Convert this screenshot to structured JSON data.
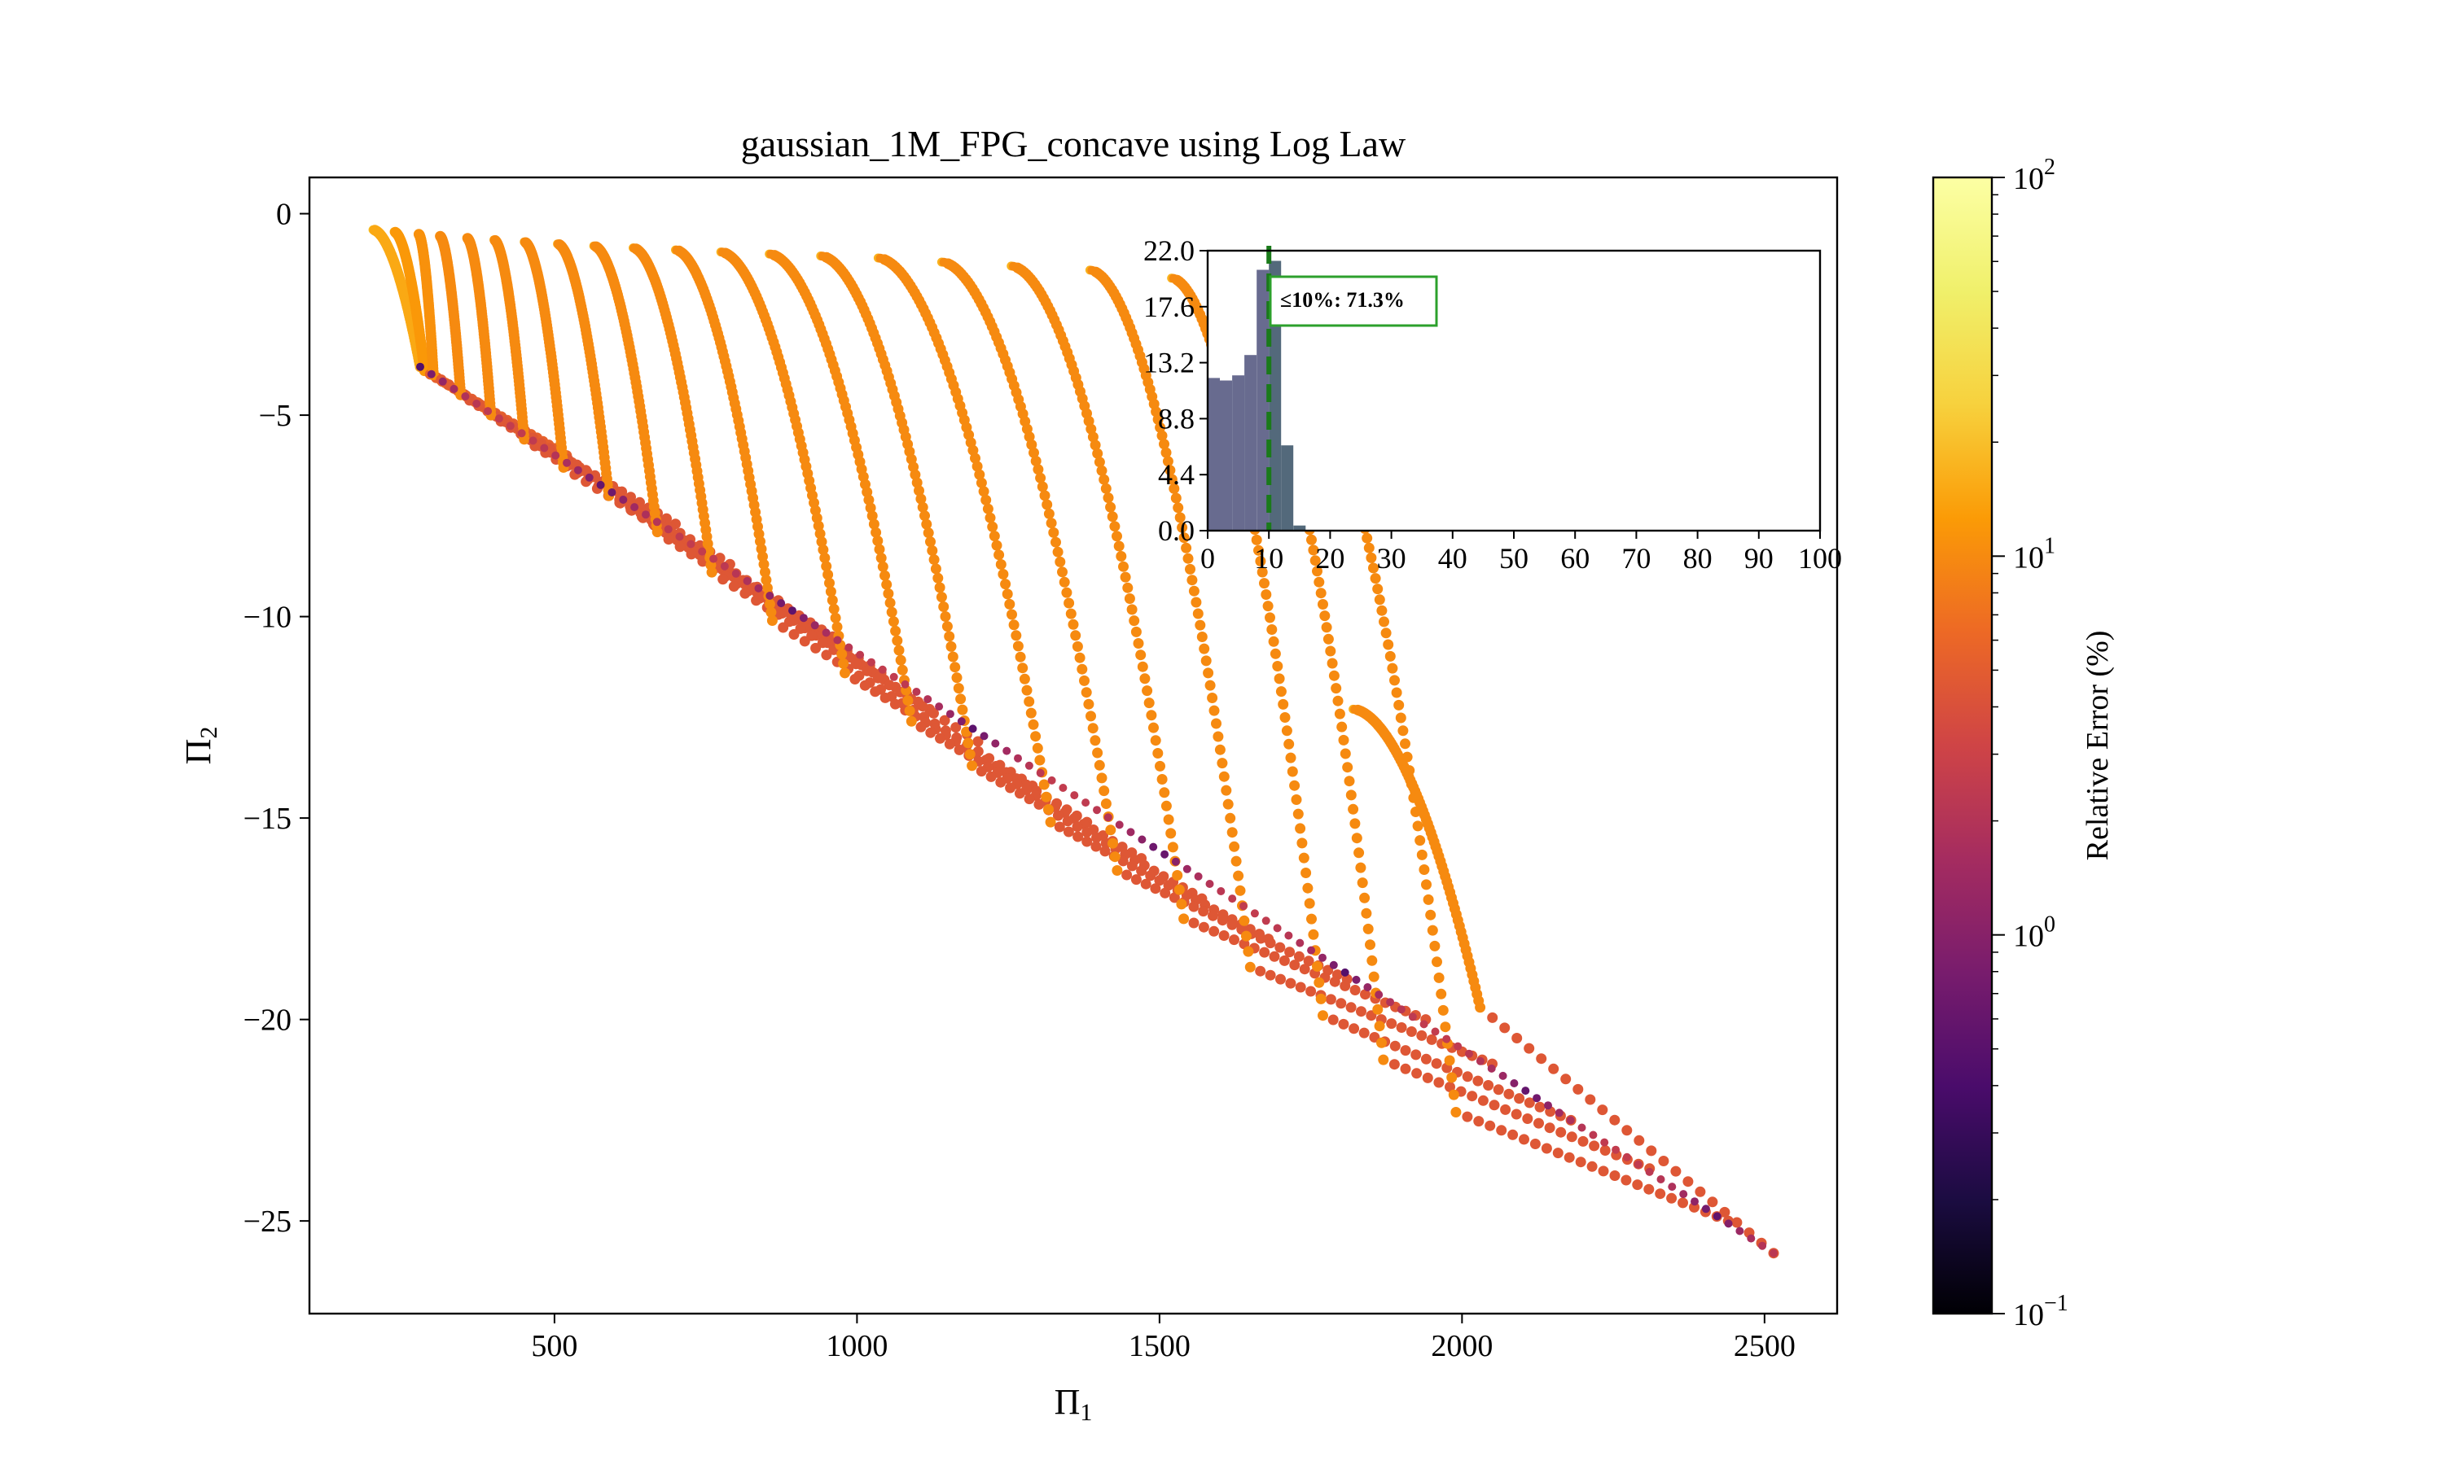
{
  "chart_data": {
    "type": "scatter",
    "title": "gaussian_1M_FPG_concave using Log Law",
    "xlabel": "Π",
    "xlabel_sub": "1",
    "ylabel": "Π",
    "ylabel_sub": "2",
    "xlim": [
      95,
      2620
    ],
    "ylim": [
      -27.3,
      0.9
    ],
    "xticks": [
      500,
      1000,
      1500,
      2000,
      2500
    ],
    "yticks": [
      0,
      -5,
      -10,
      -15,
      -20,
      -25
    ],
    "xtick_labels": [
      "500",
      "1000",
      "1500",
      "2000",
      "2500"
    ],
    "ytick_labels": [
      "0",
      "−5",
      "−10",
      "−15",
      "−20",
      "−25"
    ],
    "grid": false,
    "colormap": "inferno",
    "colorbar": {
      "label": "Relative Error (%)",
      "scale": "log",
      "range": [
        0.1,
        100
      ],
      "tick_base": "10",
      "tick_exponents": [
        "−1",
        "0",
        "1",
        "2"
      ]
    },
    "curves": [
      {
        "start": [
          200,
          -0.4
        ],
        "end": [
          278,
          -3.8
        ],
        "tail": [
          445,
          -5.4
        ],
        "error_pct": 15
      },
      {
        "start": [
          235,
          -0.45
        ],
        "end": [
          285,
          -3.9
        ],
        "tail": [
          520,
          -6.0
        ],
        "error_pct": 12
      },
      {
        "start": [
          275,
          -0.5
        ],
        "end": [
          300,
          -4.0
        ],
        "tail": [
          605,
          -6.9
        ],
        "error_pct": 11
      },
      {
        "start": [
          310,
          -0.55
        ],
        "end": [
          345,
          -4.5
        ],
        "tail": [
          700,
          -7.7
        ],
        "error_pct": 10
      },
      {
        "start": [
          355,
          -0.6
        ],
        "end": [
          395,
          -5.0
        ],
        "tail": [
          790,
          -8.7
        ],
        "error_pct": 10
      },
      {
        "start": [
          400,
          -0.65
        ],
        "end": [
          450,
          -5.6
        ],
        "tail": [
          870,
          -9.6
        ],
        "error_pct": 10
      },
      {
        "start": [
          450,
          -0.7
        ],
        "end": [
          515,
          -6.3
        ],
        "tail": [
          960,
          -10.5
        ],
        "error_pct": 10
      },
      {
        "start": [
          505,
          -0.75
        ],
        "end": [
          590,
          -7.0
        ],
        "tail": [
          1040,
          -11.4
        ],
        "error_pct": 10
      },
      {
        "start": [
          565,
          -0.8
        ],
        "end": [
          670,
          -7.9
        ],
        "tail": [
          1120,
          -12.3
        ],
        "error_pct": 10
      },
      {
        "start": [
          630,
          -0.85
        ],
        "end": [
          760,
          -8.9
        ],
        "tail": [
          1200,
          -13.1
        ],
        "error_pct": 10
      },
      {
        "start": [
          700,
          -0.9
        ],
        "end": [
          860,
          -10.1
        ],
        "tail": [
          1290,
          -14.2
        ],
        "error_pct": 10
      },
      {
        "start": [
          775,
          -0.95
        ],
        "end": [
          980,
          -11.4
        ],
        "tail": [
          1380,
          -15.1
        ],
        "error_pct": 10
      },
      {
        "start": [
          855,
          -1.0
        ],
        "end": [
          1090,
          -12.6
        ],
        "tail": [
          1470,
          -16.0
        ],
        "error_pct": 10
      },
      {
        "start": [
          940,
          -1.05
        ],
        "end": [
          1190,
          -13.7
        ],
        "tail": [
          1570,
          -17.0
        ],
        "error_pct": 10
      },
      {
        "start": [
          1035,
          -1.1
        ],
        "end": [
          1320,
          -15.1
        ],
        "tail": [
          1680,
          -18.0
        ],
        "error_pct": 10
      },
      {
        "start": [
          1140,
          -1.2
        ],
        "end": [
          1430,
          -16.3
        ],
        "tail": [
          1810,
          -19.0
        ],
        "error_pct": 10
      },
      {
        "start": [
          1255,
          -1.3
        ],
        "end": [
          1540,
          -17.5
        ],
        "tail": [
          1940,
          -20.0
        ],
        "error_pct": 10
      },
      {
        "start": [
          1385,
          -1.4
        ],
        "end": [
          1650,
          -18.7
        ],
        "tail": [
          2050,
          -21.1
        ],
        "error_pct": 10
      },
      {
        "start": [
          1520,
          -1.6
        ],
        "end": [
          1770,
          -19.9
        ],
        "tail": [
          2180,
          -22.5
        ],
        "error_pct": 10
      },
      {
        "start": [
          1620,
          -2.2
        ],
        "end": [
          1870,
          -21.0
        ],
        "tail": [
          2310,
          -23.7
        ],
        "error_pct": 10
      },
      {
        "start": [
          1710,
          -3.0
        ],
        "end": [
          1990,
          -22.3
        ],
        "tail": [
          2440,
          -25.0
        ],
        "error_pct": 10
      },
      {
        "start": [
          1820,
          -12.3
        ],
        "end": [
          2030,
          -19.7
        ],
        "tail": [
          2515,
          -25.8
        ],
        "error_pct": 10
      }
    ],
    "diagonal": [
      {
        "from": [
          278,
          -3.8
        ],
        "to": [
          2515,
          -25.8
        ],
        "error_pct": 1.5
      }
    ],
    "inset": {
      "type": "bar",
      "xlim": [
        0,
        100
      ],
      "ylim": [
        0,
        22
      ],
      "xticks": [
        "0",
        "10",
        "20",
        "30",
        "40",
        "50",
        "60",
        "70",
        "80",
        "90",
        "100"
      ],
      "yticks": [
        "0.0",
        "4.4",
        "8.8",
        "13.2",
        "17.6",
        "22.0"
      ],
      "bin_width": 2,
      "bins_start": [
        0,
        2,
        4,
        6,
        8,
        10,
        12,
        14
      ],
      "values": [
        12.0,
        11.8,
        12.2,
        13.8,
        20.5,
        21.2,
        6.7,
        0.4
      ],
      "threshold": 10,
      "annotation": "≤10%: 71.3%"
    }
  }
}
